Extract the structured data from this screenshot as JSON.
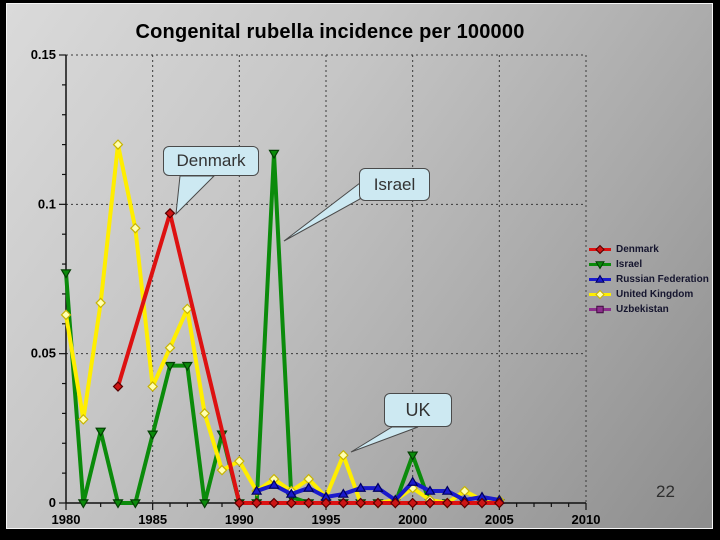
{
  "slide": {
    "page_number": "22"
  },
  "chart_data": {
    "type": "line",
    "title": "Congenital rubella incidence per 100000",
    "xlabel": "",
    "ylabel": "",
    "x_range": [
      1980,
      2010
    ],
    "y_range": [
      0,
      0.15
    ],
    "x_ticks": [
      1980,
      1985,
      1990,
      1995,
      2000,
      2005,
      2010
    ],
    "x_minor_tick_step": 1,
    "y_ticks": [
      0,
      0.05,
      0.1,
      0.15
    ],
    "y_tick_labels": [
      "0",
      "0.05",
      "0.1",
      "0.15"
    ],
    "y_minor_tick_step": 0.01,
    "grid": "dashed gridlines at major ticks",
    "legend_position": "right",
    "series": [
      {
        "name": "Denmark",
        "color": "#dd1111",
        "marker": "diamond",
        "marker_fill": "#cc1515",
        "marker_stroke": "#550000",
        "points": [
          [
            1983,
            0.039
          ],
          [
            1986,
            0.097
          ],
          [
            1990,
            0
          ],
          [
            1991,
            0
          ],
          [
            1992,
            0
          ],
          [
            1993,
            0
          ],
          [
            1994,
            0
          ],
          [
            1995,
            0
          ],
          [
            1996,
            0
          ],
          [
            1997,
            0
          ],
          [
            1998,
            0
          ],
          [
            1999,
            0
          ],
          [
            2000,
            0
          ],
          [
            2001,
            0
          ],
          [
            2002,
            0
          ],
          [
            2003,
            0
          ],
          [
            2004,
            0
          ],
          [
            2005,
            0
          ]
        ]
      },
      {
        "name": "Israel",
        "color": "#0b8b0b",
        "marker": "triangle-down",
        "marker_fill": "#0b8b0b",
        "marker_stroke": "#033f03",
        "points": [
          [
            1980,
            0.077
          ],
          [
            1981,
            0
          ],
          [
            1982,
            0.024
          ],
          [
            1983,
            0
          ],
          [
            1984,
            0
          ],
          [
            1985,
            0.023
          ],
          [
            1986,
            0.046
          ],
          [
            1987,
            0.046
          ],
          [
            1988,
            0
          ],
          [
            1989,
            0.023
          ],
          [
            1990,
            0
          ],
          [
            1991,
            0
          ],
          [
            1992,
            0.117
          ],
          [
            1993,
            0.002
          ],
          [
            1994,
            0
          ],
          [
            1995,
            0
          ],
          [
            1996,
            0
          ],
          [
            1997,
            0
          ],
          [
            1998,
            0
          ],
          [
            1999,
            0
          ],
          [
            2000,
            0.016
          ],
          [
            2001,
            0
          ],
          [
            2002,
            0
          ],
          [
            2003,
            0
          ],
          [
            2004,
            0
          ],
          [
            2005,
            0
          ]
        ]
      },
      {
        "name": "Russian Federation",
        "color": "#1a1acc",
        "marker": "triangle-up",
        "marker_fill": "#1a1acc",
        "marker_stroke": "#000060",
        "points": [
          [
            1991,
            0.004
          ],
          [
            1992,
            0.006
          ],
          [
            1993,
            0.003
          ],
          [
            1994,
            0.005
          ],
          [
            1995,
            0.002
          ],
          [
            1996,
            0.003
          ],
          [
            1997,
            0.005
          ],
          [
            1998,
            0.005
          ],
          [
            1999,
            0.001
          ],
          [
            2000,
            0.007
          ],
          [
            2001,
            0.004
          ],
          [
            2002,
            0.004
          ],
          [
            2003,
            0.001
          ],
          [
            2004,
            0.002
          ],
          [
            2005,
            0.001
          ]
        ]
      },
      {
        "name": "United Kingdom",
        "color": "#ffee00",
        "marker": "diamond-open",
        "marker_fill": "#ffffb0",
        "marker_stroke": "#c8b400",
        "points": [
          [
            1980,
            0.063
          ],
          [
            1981,
            0.028
          ],
          [
            1982,
            0.067
          ],
          [
            1983,
            0.12
          ],
          [
            1984,
            0.092
          ],
          [
            1985,
            0.039
          ],
          [
            1986,
            0.052
          ],
          [
            1987,
            0.065
          ],
          [
            1988,
            0.03
          ],
          [
            1989,
            0.011
          ],
          [
            1990,
            0.014
          ],
          [
            1991,
            0.004
          ],
          [
            1992,
            0.008
          ],
          [
            1993,
            0.004
          ],
          [
            1994,
            0.008
          ],
          [
            1995,
            0.002
          ],
          [
            1996,
            0.016
          ],
          [
            1997,
            0
          ],
          [
            1998,
            0
          ],
          [
            1999,
            0.001
          ],
          [
            2000,
            0.005
          ],
          [
            2001,
            0.001
          ],
          [
            2002,
            0
          ],
          [
            2003,
            0.004
          ],
          [
            2004,
            0.001
          ],
          [
            2005,
            0.001
          ]
        ]
      },
      {
        "name": "Uzbekistan",
        "color": "#8b2f8b",
        "marker": "square",
        "marker_fill": "#8b2f8b",
        "marker_stroke": "#3f0d3f",
        "note": "legend entry only; series not visibly above the zero baseline",
        "points": []
      }
    ],
    "callouts": [
      {
        "label": "Denmark",
        "target": "Denmark 1986 peak"
      },
      {
        "label": "Israel",
        "target": "Israel 1992 spike"
      },
      {
        "label": "UK",
        "target": "United Kingdom 1996 peak"
      }
    ]
  }
}
